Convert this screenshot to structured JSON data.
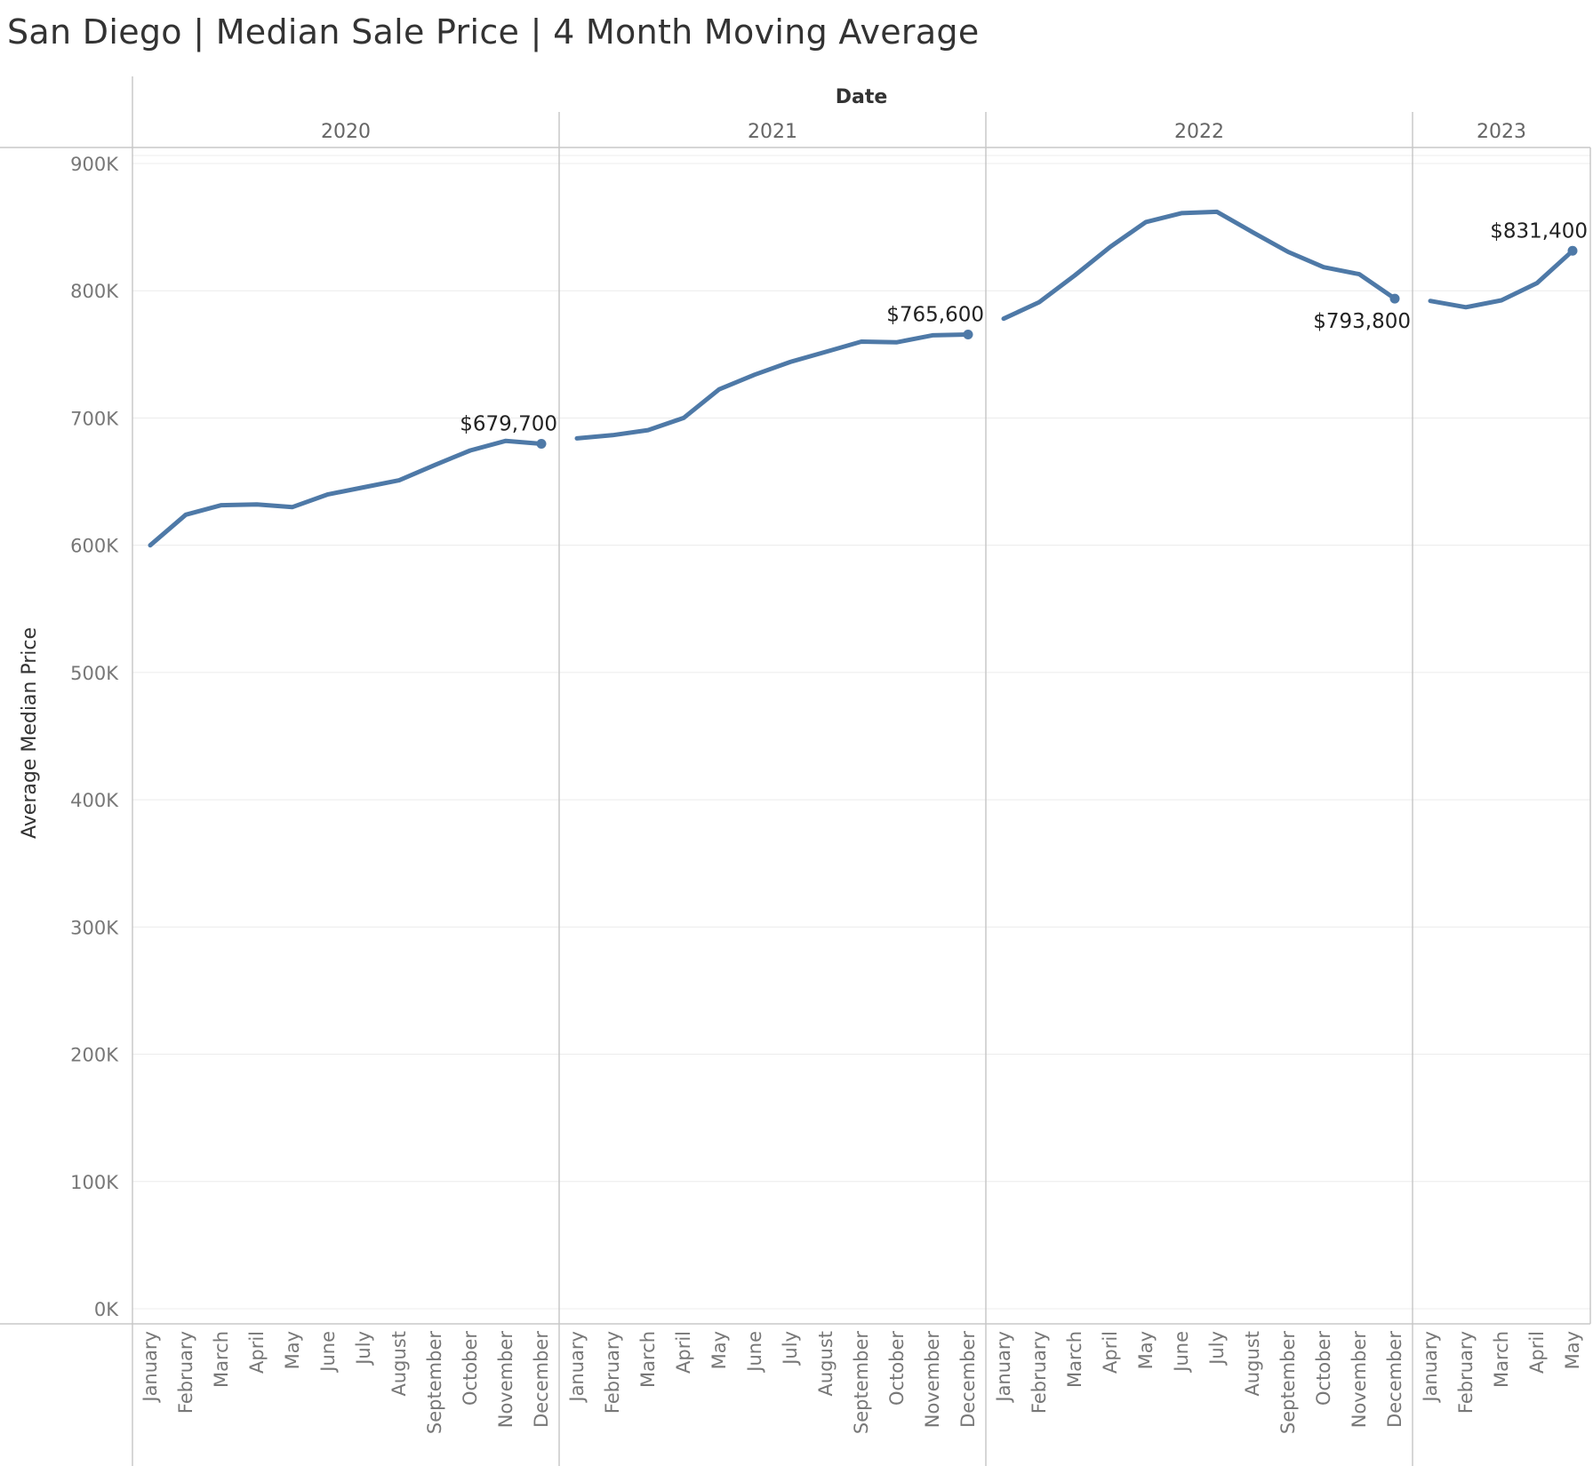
{
  "title": "San Diego | Median Sale Price | 4 Month Moving Average",
  "chart_data": {
    "type": "line",
    "title": "San Diego | Median Sale Price | 4 Month Moving Average",
    "column_header": "Date",
    "ylabel": "Average Median Price",
    "ylim": [
      0,
      900000
    ],
    "yticks": [
      0,
      100000,
      200000,
      300000,
      400000,
      500000,
      600000,
      700000,
      800000,
      900000
    ],
    "ytick_labels": [
      "0K",
      "100K",
      "200K",
      "300K",
      "400K",
      "500K",
      "600K",
      "700K",
      "800K",
      "900K"
    ],
    "grid": true,
    "line_color": "#4e79a7",
    "years": [
      {
        "year": "2020",
        "months": [
          "January",
          "February",
          "March",
          "April",
          "May",
          "June",
          "July",
          "August",
          "September",
          "October",
          "November",
          "December"
        ],
        "values": [
          600000,
          624000,
          631500,
          632000,
          630000,
          640000,
          645500,
          651000,
          663000,
          674500,
          682000,
          679700
        ],
        "end_label": "$679,700",
        "end_label_position": "above"
      },
      {
        "year": "2021",
        "months": [
          "January",
          "February",
          "March",
          "April",
          "May",
          "June",
          "July",
          "August",
          "September",
          "October",
          "November",
          "December"
        ],
        "values": [
          684000,
          686500,
          690500,
          700000,
          722500,
          734000,
          744000,
          752000,
          760000,
          759500,
          765000,
          765600
        ],
        "end_label": "$765,600",
        "end_label_position": "above"
      },
      {
        "year": "2022",
        "months": [
          "January",
          "February",
          "March",
          "April",
          "May",
          "June",
          "July",
          "August",
          "September",
          "October",
          "November",
          "December"
        ],
        "values": [
          778000,
          791000,
          812000,
          834500,
          854000,
          861000,
          862000,
          846000,
          830500,
          818500,
          813000,
          793800
        ],
        "end_label": "$793,800",
        "end_label_position": "below"
      },
      {
        "year": "2023",
        "months": [
          "January",
          "February",
          "March",
          "April",
          "May"
        ],
        "values": [
          792000,
          787000,
          792500,
          806000,
          831400
        ],
        "end_label": "$831,400",
        "end_label_position": "above"
      }
    ]
  }
}
